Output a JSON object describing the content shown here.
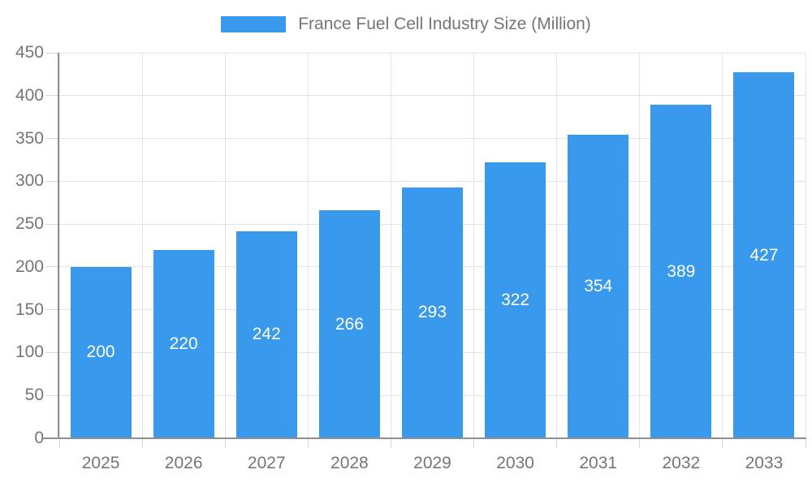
{
  "chart_data": {
    "type": "bar",
    "title": "France Fuel Cell Industry Size (Million)",
    "series": [
      {
        "name": "France Fuel Cell Industry Size (Million)",
        "values": [
          200,
          220,
          242,
          266,
          293,
          322,
          354,
          389,
          427
        ]
      }
    ],
    "categories": [
      "2025",
      "2026",
      "2027",
      "2028",
      "2029",
      "2030",
      "2031",
      "2032",
      "2033"
    ],
    "xlabel": "",
    "ylabel": "",
    "ylim": [
      0,
      450
    ],
    "ytick_step": 50,
    "yticks": [
      0,
      50,
      100,
      150,
      200,
      250,
      300,
      350,
      400,
      450
    ],
    "grid": true,
    "legend_position": "top",
    "value_labels": "inside-bar-centered",
    "colors": {
      "bar": "#3999EC",
      "gridline": "#E4E4E4",
      "tick_mark": "#D6D6D6",
      "axis_line": "#8F8F8F",
      "tick_text": "#757575",
      "bar_label_text": "#FFFFFF",
      "background": "#FFFFFF"
    }
  }
}
